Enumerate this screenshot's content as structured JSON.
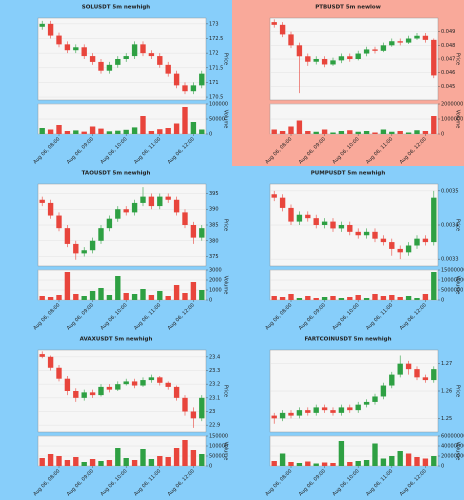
{
  "chart_data": [
    {
      "type": "candlestick",
      "title": "SOLUSDT 5m newhigh",
      "background": "#87cefa",
      "up_color": "#2ea043",
      "down_color": "#e8453c",
      "grid": true,
      "ylabel": "Price",
      "y2label": "Volume",
      "x": [
        null,
        null,
        "Aug 06, 08:00",
        null,
        null,
        null,
        "Aug 06, 09:00",
        null,
        null,
        null,
        "Aug 06, 10:00",
        null,
        null,
        null,
        "Aug 06, 11:00",
        null,
        null,
        null,
        "Aug 06, 12:00",
        null
      ],
      "open": [
        172.9,
        173.0,
        172.6,
        172.3,
        172.1,
        172.2,
        171.9,
        171.7,
        171.4,
        171.6,
        171.8,
        171.9,
        172.3,
        172.0,
        171.9,
        171.6,
        171.3,
        170.9,
        170.7,
        170.9
      ],
      "high": [
        173.1,
        173.1,
        172.7,
        172.4,
        172.3,
        172.3,
        172.0,
        171.8,
        171.7,
        171.9,
        172.0,
        172.4,
        172.4,
        172.1,
        172.0,
        171.7,
        171.4,
        171.0,
        171.0,
        171.4
      ],
      "low": [
        172.8,
        172.5,
        172.2,
        172.0,
        172.0,
        171.8,
        171.6,
        171.3,
        171.3,
        171.5,
        171.7,
        171.8,
        171.9,
        171.8,
        171.5,
        171.2,
        170.8,
        170.6,
        170.6,
        170.8
      ],
      "close": [
        173.0,
        172.6,
        172.3,
        172.1,
        172.2,
        171.9,
        171.7,
        171.4,
        171.6,
        171.8,
        171.9,
        172.3,
        172.0,
        171.9,
        171.6,
        171.3,
        170.9,
        170.7,
        170.9,
        171.3
      ],
      "volume": [
        20000,
        15000,
        30000,
        10000,
        12000,
        8000,
        25000,
        18000,
        9000,
        11000,
        14000,
        22000,
        60000,
        10000,
        16000,
        20000,
        35000,
        90000,
        40000,
        15000
      ],
      "ylim": [
        170.4,
        173.2
      ],
      "yticks": [
        170.5,
        171,
        171.5,
        172,
        172.5,
        173
      ],
      "y2lim": [
        0,
        100000
      ],
      "y2ticks": [
        0,
        50000,
        100000
      ]
    },
    {
      "type": "candlestick",
      "title": "PTBUSDT 5m newlow",
      "background": "#f9a99a",
      "up_color": "#2ea043",
      "down_color": "#e8453c",
      "grid": true,
      "ylabel": "Price",
      "y2label": "Volume",
      "x": [
        null,
        null,
        "Aug 06, 08:00",
        null,
        null,
        null,
        "Aug 06, 09:00",
        null,
        null,
        null,
        "Aug 06, 10:00",
        null,
        null,
        null,
        "Aug 06, 11:00",
        null,
        null,
        null,
        "Aug 06, 12:00",
        null
      ],
      "open": [
        0.0497,
        0.0495,
        0.0488,
        0.048,
        0.0472,
        0.0468,
        0.047,
        0.0466,
        0.0469,
        0.0472,
        0.047,
        0.0474,
        0.0477,
        0.0476,
        0.048,
        0.0483,
        0.0482,
        0.0485,
        0.0487,
        0.0484
      ],
      "high": [
        0.0499,
        0.0497,
        0.049,
        0.0482,
        0.0474,
        0.0472,
        0.0472,
        0.0471,
        0.0474,
        0.0474,
        0.0476,
        0.0479,
        0.0479,
        0.0482,
        0.0485,
        0.0485,
        0.0487,
        0.0489,
        0.0489,
        0.0485
      ],
      "low": [
        0.0493,
        0.0486,
        0.0478,
        0.0445,
        0.0465,
        0.0466,
        0.0464,
        0.0465,
        0.0467,
        0.0468,
        0.0469,
        0.0472,
        0.0474,
        0.0475,
        0.0479,
        0.048,
        0.0481,
        0.0484,
        0.0482,
        0.0456
      ],
      "close": [
        0.0495,
        0.0488,
        0.048,
        0.0472,
        0.0468,
        0.047,
        0.0466,
        0.0469,
        0.0472,
        0.047,
        0.0474,
        0.0477,
        0.0476,
        0.048,
        0.0483,
        0.0482,
        0.0485,
        0.0487,
        0.0484,
        0.0458
      ],
      "volume": [
        300000,
        200000,
        500000,
        900000,
        200000,
        150000,
        300000,
        100000,
        200000,
        250000,
        150000,
        200000,
        100000,
        300000,
        150000,
        200000,
        100000,
        250000,
        200000,
        1200000
      ],
      "ylim": [
        0.044,
        0.05
      ],
      "yticks": [
        0.045,
        0.046,
        0.047,
        0.048,
        0.049
      ],
      "y2lim": [
        0,
        2000000
      ],
      "y2ticks": [
        0,
        1000000,
        2000000
      ]
    },
    {
      "type": "candlestick",
      "title": "TAOUSDT 5m newhigh",
      "background": "#87cefa",
      "up_color": "#2ea043",
      "down_color": "#e8453c",
      "grid": true,
      "ylabel": "Price",
      "y2label": "Volume",
      "x": [
        null,
        null,
        "Aug 06, 08:00",
        null,
        null,
        null,
        "Aug 06, 09:00",
        null,
        null,
        null,
        "Aug 06, 10:00",
        null,
        null,
        null,
        "Aug 06, 11:00",
        null,
        null,
        null,
        "Aug 06, 12:00",
        null
      ],
      "open": [
        393,
        392,
        388,
        384,
        379,
        376,
        377,
        380,
        384,
        387,
        390,
        389,
        392,
        394,
        391,
        394,
        393,
        389,
        385,
        381
      ],
      "high": [
        394,
        393,
        389,
        385,
        380,
        378,
        381,
        385,
        388,
        391,
        391,
        393,
        397,
        395,
        395,
        395,
        394,
        390,
        386,
        385
      ],
      "low": [
        391,
        387,
        383,
        378,
        374,
        375,
        376,
        379,
        383,
        386,
        388,
        388,
        391,
        390,
        390,
        392,
        388,
        384,
        379,
        380
      ],
      "close": [
        392,
        388,
        384,
        379,
        376,
        377,
        380,
        384,
        387,
        390,
        389,
        392,
        394,
        391,
        394,
        393,
        389,
        385,
        381,
        384
      ],
      "volume": [
        400,
        300,
        500,
        2800,
        600,
        400,
        900,
        1200,
        500,
        2400,
        700,
        600,
        1100,
        500,
        900,
        400,
        1500,
        700,
        1800,
        1000
      ],
      "ylim": [
        372,
        398
      ],
      "yticks": [
        375,
        380,
        385,
        390,
        395
      ],
      "y2lim": [
        0,
        3000
      ],
      "y2ticks": [
        0,
        1000,
        2000,
        3000
      ]
    },
    {
      "type": "candlestick",
      "title": "PUMPUSDT 5m newhigh",
      "background": "#87cefa",
      "up_color": "#2ea043",
      "down_color": "#e8453c",
      "grid": true,
      "ylabel": "Price",
      "y2label": "Volume",
      "x": [
        null,
        null,
        "Aug 06, 08:00",
        null,
        null,
        null,
        "Aug 06, 09:00",
        null,
        null,
        null,
        "Aug 06, 10:00",
        null,
        null,
        null,
        "Aug 06, 11:00",
        null,
        null,
        null,
        "Aug 06, 12:00",
        null
      ],
      "open": [
        0.00349,
        0.00348,
        0.00345,
        0.00341,
        0.00343,
        0.00342,
        0.0034,
        0.00341,
        0.00339,
        0.0034,
        0.00338,
        0.00337,
        0.00338,
        0.00336,
        0.00335,
        0.00333,
        0.00332,
        0.00334,
        0.00336,
        0.00335
      ],
      "high": [
        0.0035,
        0.00349,
        0.00346,
        0.00344,
        0.00344,
        0.00343,
        0.00342,
        0.00342,
        0.00341,
        0.00341,
        0.00339,
        0.00339,
        0.00339,
        0.00337,
        0.00336,
        0.00334,
        0.00335,
        0.00337,
        0.00337,
        0.0035
      ],
      "low": [
        0.00347,
        0.00344,
        0.0034,
        0.0034,
        0.00341,
        0.00339,
        0.00339,
        0.00338,
        0.00338,
        0.00337,
        0.00336,
        0.00336,
        0.00335,
        0.00334,
        0.00331,
        0.0033,
        0.00331,
        0.00333,
        0.00334,
        0.00334
      ],
      "close": [
        0.00348,
        0.00345,
        0.00341,
        0.00343,
        0.00342,
        0.0034,
        0.00341,
        0.00339,
        0.0034,
        0.00338,
        0.00337,
        0.00338,
        0.00336,
        0.00335,
        0.00333,
        0.00332,
        0.00334,
        0.00336,
        0.00335,
        0.00348
      ],
      "volume": [
        2000000,
        1500000,
        3000000,
        1000000,
        2000000,
        1000000,
        1500000,
        2000000,
        1000000,
        1500000,
        2500000,
        1000000,
        3000000,
        2000000,
        2500000,
        1500000,
        2000000,
        1000000,
        3000000,
        14000000
      ],
      "ylim": [
        0.00328,
        0.00352
      ],
      "yticks": [
        0.0033,
        0.0034,
        0.0035
      ],
      "y2lim": [
        0,
        15000000
      ],
      "y2ticks": [
        0,
        5000000,
        10000000,
        15000000
      ]
    },
    {
      "type": "candlestick",
      "title": "AVAXUSDT 5m newhigh",
      "background": "#87cefa",
      "up_color": "#2ea043",
      "down_color": "#e8453c",
      "grid": true,
      "ylabel": "Price",
      "y2label": "Volume",
      "x": [
        null,
        null,
        "Aug 06, 08:00",
        null,
        null,
        null,
        "Aug 06, 09:00",
        null,
        null,
        null,
        "Aug 06, 10:00",
        null,
        null,
        null,
        "Aug 06, 11:00",
        null,
        null,
        null,
        "Aug 06, 12:00",
        null
      ],
      "open": [
        23.42,
        23.4,
        23.32,
        23.24,
        23.15,
        23.1,
        23.14,
        23.12,
        23.18,
        23.16,
        23.2,
        23.22,
        23.19,
        23.23,
        23.25,
        23.21,
        23.18,
        23.1,
        23.0,
        22.95
      ],
      "high": [
        23.44,
        23.41,
        23.34,
        23.26,
        23.17,
        23.16,
        23.16,
        23.2,
        23.2,
        23.22,
        23.24,
        23.24,
        23.25,
        23.27,
        23.26,
        23.22,
        23.19,
        23.12,
        23.03,
        23.12
      ],
      "low": [
        23.39,
        23.3,
        23.22,
        23.12,
        23.07,
        23.08,
        23.1,
        23.11,
        23.14,
        23.15,
        23.19,
        23.17,
        23.18,
        23.21,
        23.19,
        23.16,
        23.08,
        22.97,
        22.88,
        22.93
      ],
      "close": [
        23.4,
        23.32,
        23.24,
        23.15,
        23.1,
        23.14,
        23.12,
        23.18,
        23.16,
        23.2,
        23.22,
        23.19,
        23.23,
        23.25,
        23.21,
        23.18,
        23.1,
        23.0,
        22.95,
        23.1
      ],
      "volume": [
        40000,
        60000,
        50000,
        30000,
        45000,
        20000,
        35000,
        25000,
        30000,
        90000,
        40000,
        30000,
        85000,
        35000,
        50000,
        45000,
        90000,
        130000,
        80000,
        60000
      ],
      "ylim": [
        22.85,
        23.45
      ],
      "yticks": [
        22.9,
        23,
        23.1,
        23.2,
        23.3,
        23.4
      ],
      "y2lim": [
        0,
        150000
      ],
      "y2ticks": [
        0,
        50000,
        100000,
        150000
      ]
    },
    {
      "type": "candlestick",
      "title": "FARTCOINUSDT 5m newhigh",
      "background": "#87cefa",
      "up_color": "#2ea043",
      "down_color": "#e8453c",
      "grid": true,
      "ylabel": "Price",
      "y2label": "Volume",
      "x": [
        null,
        null,
        "Aug 06, 08:00",
        null,
        null,
        null,
        "Aug 06, 09:00",
        null,
        null,
        null,
        "Aug 06, 10:00",
        null,
        null,
        null,
        "Aug 06, 11:00",
        null,
        null,
        null,
        "Aug 06, 12:00",
        null
      ],
      "open": [
        1.251,
        1.25,
        1.252,
        1.251,
        1.253,
        1.252,
        1.254,
        1.253,
        1.252,
        1.254,
        1.253,
        1.255,
        1.256,
        1.258,
        1.262,
        1.266,
        1.27,
        1.268,
        1.265,
        1.264
      ],
      "high": [
        1.252,
        1.253,
        1.253,
        1.254,
        1.254,
        1.255,
        1.255,
        1.254,
        1.255,
        1.255,
        1.256,
        1.257,
        1.259,
        1.263,
        1.267,
        1.273,
        1.271,
        1.269,
        1.266,
        1.269
      ],
      "low": [
        1.248,
        1.249,
        1.25,
        1.25,
        1.251,
        1.251,
        1.252,
        1.251,
        1.251,
        1.252,
        1.252,
        1.254,
        1.255,
        1.257,
        1.261,
        1.265,
        1.266,
        1.264,
        1.263,
        1.263
      ],
      "close": [
        1.25,
        1.252,
        1.251,
        1.253,
        1.252,
        1.254,
        1.253,
        1.252,
        1.254,
        1.253,
        1.255,
        1.256,
        1.258,
        1.262,
        1.266,
        1.27,
        1.268,
        1.265,
        1.264,
        1.268
      ],
      "volume": [
        10000000,
        25000000,
        8000000,
        6000000,
        9000000,
        5000000,
        7000000,
        6000000,
        50000000,
        8000000,
        10000000,
        12000000,
        45000000,
        15000000,
        20000000,
        30000000,
        25000000,
        18000000,
        15000000,
        20000000
      ],
      "ylim": [
        1.245,
        1.275
      ],
      "yticks": [
        1.25,
        1.26,
        1.27
      ],
      "y2lim": [
        0,
        60000000
      ],
      "y2ticks": [
        0,
        20000000,
        40000000,
        60000000
      ]
    }
  ]
}
